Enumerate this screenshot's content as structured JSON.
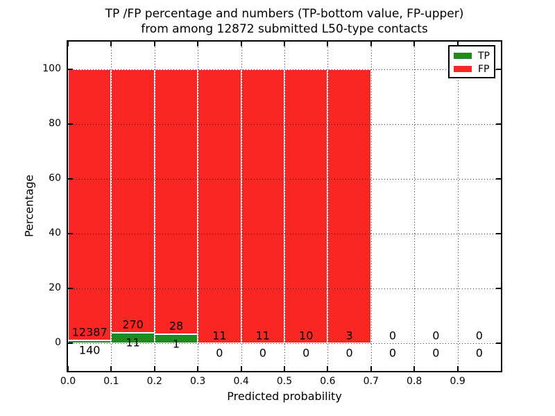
{
  "chart_data": {
    "type": "bar",
    "stacked": true,
    "normalized_to_100_percent": true,
    "title": "TP /FP percentage and numbers (TP-bottom value, FP-upper) from among 12872 submitted L50-type contacts",
    "title_line1": "TP /FP percentage and numbers (TP-bottom value, FP-upper)",
    "title_line2": "from among 12872 submitted L50-type contacts",
    "xlabel": "Predicted probability",
    "ylabel": "Percentage",
    "bin_width": 0.1,
    "bin_starts": [
      0.0,
      0.1,
      0.2,
      0.3,
      0.4,
      0.5,
      0.6,
      0.7,
      0.8,
      0.9
    ],
    "series": [
      {
        "name": "TP",
        "color": "#1e8b1e",
        "counts": [
          140,
          11,
          1,
          0,
          0,
          0,
          0,
          0,
          0,
          0
        ]
      },
      {
        "name": "FP",
        "color": "#f92723",
        "counts": [
          12387,
          270,
          28,
          11,
          11,
          10,
          3,
          0,
          0,
          0
        ]
      }
    ],
    "tp_percentages": [
      1.12,
      3.91,
      3.45,
      0,
      0,
      0,
      0,
      0,
      0,
      0
    ],
    "fp_percentages": [
      98.88,
      96.09,
      96.55,
      100,
      100,
      100,
      100,
      0,
      0,
      0
    ],
    "bar_edge_color": "#ffffff",
    "xlim": [
      0.0,
      1.0
    ],
    "ylim": [
      -10,
      110
    ],
    "xticks": {
      "values": [
        0.0,
        0.1,
        0.2,
        0.3,
        0.4,
        0.5,
        0.6,
        0.7,
        0.8,
        0.9
      ],
      "labels": [
        "0.0",
        "0.1",
        "0.2",
        "0.3",
        "0.4",
        "0.5",
        "0.6",
        "0.7",
        "0.8",
        "0.9"
      ]
    },
    "yticks": {
      "values": [
        0,
        20,
        40,
        60,
        80,
        100
      ],
      "labels": [
        "0",
        "20",
        "40",
        "60",
        "80",
        "100"
      ]
    },
    "grid": {
      "on": true,
      "style": "dotted",
      "color": "#000000",
      "above_bars": true
    },
    "legend": {
      "position": "upper-right",
      "entries": [
        {
          "label": "TP",
          "color": "#1e8b1e"
        },
        {
          "label": "FP",
          "color": "#f92723"
        }
      ]
    }
  }
}
